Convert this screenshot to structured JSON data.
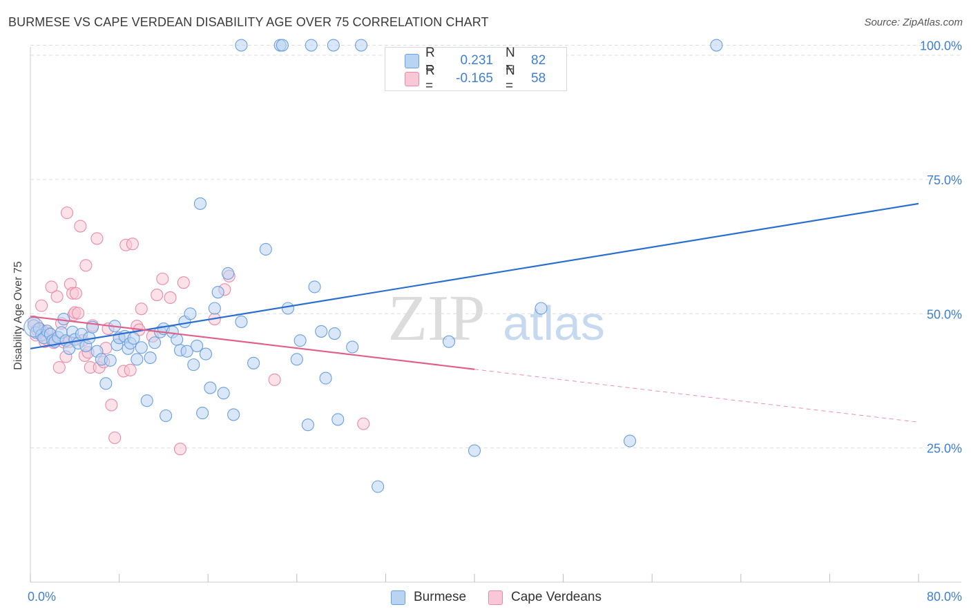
{
  "title": "BURMESE VS CAPE VERDEAN DISABILITY AGE OVER 75 CORRELATION CHART",
  "source": "Source: ZipAtlas.com",
  "watermark": {
    "zip": "ZIP",
    "atlas": "atlas"
  },
  "legend": {
    "rows": [
      {
        "r_label": "R =",
        "r_value": "0.231",
        "n_label": "N =",
        "n_value": "82"
      },
      {
        "r_label": "R =",
        "r_value": "-0.165",
        "n_label": "N =",
        "n_value": "58"
      }
    ]
  },
  "bottom_legend": [
    "Burmese",
    "Cape Verdeans"
  ],
  "colors": {
    "burmese_fill": "#b9d3f3",
    "burmese_stroke": "#6a9fdd",
    "burmese_line": "#2a6fcf",
    "cape_fill": "#f8c8d6",
    "cape_stroke": "#e88aa8",
    "cape_line": "#e0608c",
    "axis_text": "#3d7fd3",
    "grid": "#dddddd"
  },
  "chart_data": {
    "type": "scatter",
    "title": "BURMESE VS CAPE VERDEAN DISABILITY AGE OVER 75 CORRELATION CHART",
    "xlabel": "",
    "ylabel": "Disability Age Over 75",
    "xlim": [
      0,
      80
    ],
    "ylim": [
      0,
      102
    ],
    "x_tick_labels": [
      {
        "value": 0,
        "label": "0.0%"
      },
      {
        "value": 80,
        "label": "80.0%"
      }
    ],
    "y_tick_labels": [
      {
        "value": 25,
        "label": "25.0%"
      },
      {
        "value": 50,
        "label": "50.0%"
      },
      {
        "value": 75,
        "label": "75.0%"
      },
      {
        "value": 100,
        "label": "100.0%"
      }
    ],
    "series": [
      {
        "name": "Burmese",
        "R": 0.231,
        "N": 82,
        "trend": {
          "x": [
            0,
            80
          ],
          "y": [
            43.5,
            70.5
          ],
          "dashed_from": null
        },
        "points": [
          [
            0.3,
            47.8
          ],
          [
            0.5,
            46.5
          ],
          [
            0.8,
            47.2
          ],
          [
            1.0,
            46.0
          ],
          [
            1.2,
            45.5
          ],
          [
            1.5,
            46.8
          ],
          [
            1.8,
            46.2
          ],
          [
            2.0,
            45.0
          ],
          [
            2.2,
            44.8
          ],
          [
            2.5,
            45.6
          ],
          [
            2.8,
            46.5
          ],
          [
            3.0,
            49.0
          ],
          [
            3.2,
            45.0
          ],
          [
            3.5,
            43.5
          ],
          [
            3.8,
            46.6
          ],
          [
            4.0,
            45.2
          ],
          [
            4.3,
            44.5
          ],
          [
            4.6,
            46.2
          ],
          [
            5.0,
            44.0
          ],
          [
            5.3,
            45.5
          ],
          [
            5.6,
            47.5
          ],
          [
            6.0,
            43.0
          ],
          [
            6.4,
            41.5
          ],
          [
            6.8,
            37.0
          ],
          [
            7.2,
            41.3
          ],
          [
            7.6,
            47.7
          ],
          [
            7.8,
            44.2
          ],
          [
            8.0,
            45.5
          ],
          [
            8.5,
            45.8
          ],
          [
            8.8,
            43.5
          ],
          [
            9.0,
            44.5
          ],
          [
            9.3,
            45.4
          ],
          [
            9.6,
            41.5
          ],
          [
            10.0,
            43.7
          ],
          [
            10.5,
            33.8
          ],
          [
            10.8,
            41.8
          ],
          [
            11.2,
            44.6
          ],
          [
            11.7,
            46.6
          ],
          [
            12.0,
            47.2
          ],
          [
            12.2,
            31.0
          ],
          [
            12.8,
            46.6
          ],
          [
            13.2,
            45.2
          ],
          [
            13.5,
            43.2
          ],
          [
            13.9,
            48.5
          ],
          [
            14.1,
            43.0
          ],
          [
            14.4,
            50.0
          ],
          [
            14.7,
            40.5
          ],
          [
            15.0,
            44.0
          ],
          [
            15.5,
            31.5
          ],
          [
            15.8,
            42.5
          ],
          [
            16.2,
            36.2
          ],
          [
            16.6,
            51.0
          ],
          [
            16.9,
            54.0
          ],
          [
            17.4,
            35.2
          ],
          [
            17.8,
            57.5
          ],
          [
            18.3,
            31.2
          ],
          [
            19.0,
            100.0
          ],
          [
            20.1,
            40.8
          ],
          [
            21.2,
            62.0
          ],
          [
            22.5,
            100.0
          ],
          [
            22.7,
            100.0
          ],
          [
            24.0,
            41.5
          ],
          [
            25.3,
            100.0
          ],
          [
            27.3,
            100.0
          ],
          [
            29.8,
            100.0
          ],
          [
            61.8,
            100.0
          ],
          [
            15.3,
            70.5
          ],
          [
            19.0,
            48.5
          ],
          [
            23.2,
            51.0
          ],
          [
            24.3,
            45.0
          ],
          [
            25.0,
            29.3
          ],
          [
            25.6,
            55.0
          ],
          [
            26.2,
            46.7
          ],
          [
            26.6,
            38.0
          ],
          [
            27.4,
            46.3
          ],
          [
            27.7,
            30.3
          ],
          [
            29.0,
            43.8
          ],
          [
            31.3,
            17.8
          ],
          [
            37.7,
            44.8
          ],
          [
            40.0,
            24.5
          ],
          [
            46.0,
            51.0
          ],
          [
            54.0,
            26.3
          ]
        ]
      },
      {
        "name": "Cape Verdeans",
        "R": -0.165,
        "N": 58,
        "trend": {
          "x": [
            0,
            80
          ],
          "y": [
            49.5,
            29.8
          ],
          "dashed_from": 40
        },
        "points": [
          [
            0.3,
            48.5
          ],
          [
            0.5,
            46.0
          ],
          [
            0.8,
            47.3
          ],
          [
            1.0,
            51.5
          ],
          [
            1.3,
            44.8
          ],
          [
            1.5,
            45.2
          ],
          [
            1.7,
            46.4
          ],
          [
            1.9,
            55.0
          ],
          [
            2.1,
            44.6
          ],
          [
            2.4,
            53.2
          ],
          [
            2.6,
            40.0
          ],
          [
            2.8,
            48.2
          ],
          [
            3.0,
            44.7
          ],
          [
            3.2,
            42.0
          ],
          [
            3.3,
            68.8
          ],
          [
            3.5,
            44.8
          ],
          [
            3.6,
            55.5
          ],
          [
            3.8,
            53.8
          ],
          [
            3.9,
            49.8
          ],
          [
            4.0,
            50.2
          ],
          [
            4.1,
            53.8
          ],
          [
            4.3,
            50.1
          ],
          [
            4.5,
            66.3
          ],
          [
            4.7,
            45.0
          ],
          [
            4.9,
            42.2
          ],
          [
            5.0,
            59.0
          ],
          [
            5.2,
            42.8
          ],
          [
            5.4,
            40.0
          ],
          [
            5.6,
            47.8
          ],
          [
            6.0,
            64.0
          ],
          [
            6.2,
            40.0
          ],
          [
            6.6,
            41.0
          ],
          [
            7.0,
            47.2
          ],
          [
            7.3,
            33.0
          ],
          [
            7.6,
            26.9
          ],
          [
            8.0,
            45.5
          ],
          [
            8.4,
            39.3
          ],
          [
            8.6,
            62.8
          ],
          [
            9.0,
            39.5
          ],
          [
            9.2,
            63.0
          ],
          [
            9.6,
            47.7
          ],
          [
            10.0,
            50.9
          ],
          [
            11.0,
            45.8
          ],
          [
            11.4,
            53.5
          ],
          [
            11.9,
            56.5
          ],
          [
            12.6,
            53.0
          ],
          [
            13.5,
            24.8
          ],
          [
            13.8,
            55.8
          ],
          [
            16.6,
            49.0
          ],
          [
            17.5,
            54.5
          ],
          [
            17.9,
            57.0
          ],
          [
            22.0,
            37.7
          ],
          [
            30.0,
            29.5
          ],
          [
            0.6,
            47.0
          ],
          [
            1.1,
            46.8
          ],
          [
            2.0,
            45.3
          ],
          [
            6.8,
            43.6
          ],
          [
            9.8,
            47.0
          ]
        ]
      }
    ]
  }
}
